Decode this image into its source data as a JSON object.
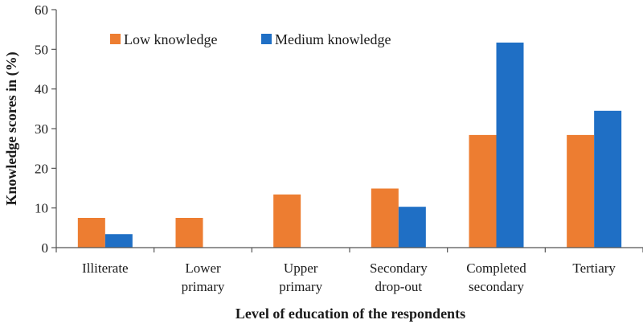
{
  "chart_data": {
    "type": "bar",
    "title": "",
    "xlabel": "Level of education of the respondents",
    "ylabel": "Knowledge scores in (%)",
    "ylim": [
      0,
      60
    ],
    "yticks": [
      0,
      10,
      20,
      30,
      40,
      50,
      60
    ],
    "grid": false,
    "legend_position": "top-left",
    "categories": [
      [
        "Illiterate"
      ],
      [
        "Lower",
        "primary"
      ],
      [
        "Upper",
        "primary"
      ],
      [
        "Secondary",
        "drop-out"
      ],
      [
        "Completed",
        "secondary"
      ],
      [
        "Tertiary"
      ]
    ],
    "series": [
      {
        "name": "Low knowledge",
        "color": "#ed7d31",
        "values": [
          7.5,
          7.5,
          13.4,
          14.9,
          28.4,
          28.4
        ]
      },
      {
        "name": "Medium knowledge",
        "color": "#1f6fc5",
        "values": [
          3.4,
          0,
          0,
          10.3,
          51.7,
          34.5
        ]
      }
    ]
  }
}
